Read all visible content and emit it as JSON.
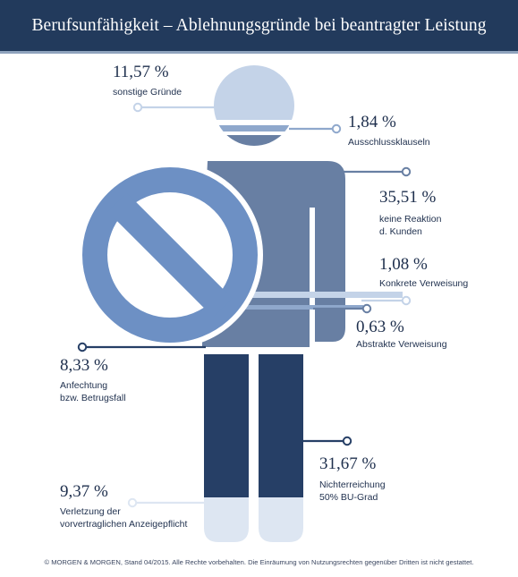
{
  "title": "Berufsunfähigkeit – Ablehnungsgründe bei beantragter Leistung",
  "footer": "© MORGEN & MORGEN, Stand 04/2015. Alle Rechte vorbehalten. Die Einräumung von Nutzungsrechten gegenüber Dritten ist nicht gestattet.",
  "colors": {
    "header": "#223a5c",
    "dark_navy": "#263f66",
    "steel_blue": "#687fa3",
    "light_blue": "#c4d3e8",
    "pale_blue": "#dde6f2",
    "prohibition_blue": "#6d90c4",
    "text": "#1e2f4d"
  },
  "chart_data": {
    "type": "pie",
    "unit": "%",
    "categories": [
      "sonstige Gründe",
      "Ausschlussklauseln",
      "keine Reaktion d. Kunden",
      "Konkrete Verweisung",
      "Abstrakte Verweisung",
      "Anfechtung bzw. Betrugsfall",
      "Nichterreichung 50% BU-Grad",
      "Verletzung der vorvertraglichen Anzeigepflicht"
    ],
    "values": [
      11.57,
      1.84,
      35.51,
      1.08,
      0.63,
      8.33,
      31.67,
      9.37
    ],
    "value_labels": [
      "11,57 %",
      "1,84 %",
      "35,51 %",
      "1,08 %",
      "0,63 %",
      "8,33 %",
      "31,67 %",
      "9,37 %"
    ],
    "labels": [
      "sonstige Gründe",
      "Ausschlussklauseln",
      "keine Reaktion\nd. Kunden",
      "Konkrete Verweisung",
      "Abstrakte Verweisung",
      "Anfechtung\nbzw. Betrugsfall",
      "Nichterreichung\n50% BU-Grad",
      "Verletzung der\nvorvertraglichen Anzeigepflicht"
    ],
    "segment_colors": [
      "#c4d3e8",
      "#8fa8cc",
      "#687fa3",
      "#c4d3e8",
      "#8fa8cc",
      "#263f66",
      "#263f66",
      "#dde6f2"
    ],
    "title": "Berufsunfähigkeit – Ablehnungsgründe bei beantragter Leistung"
  }
}
